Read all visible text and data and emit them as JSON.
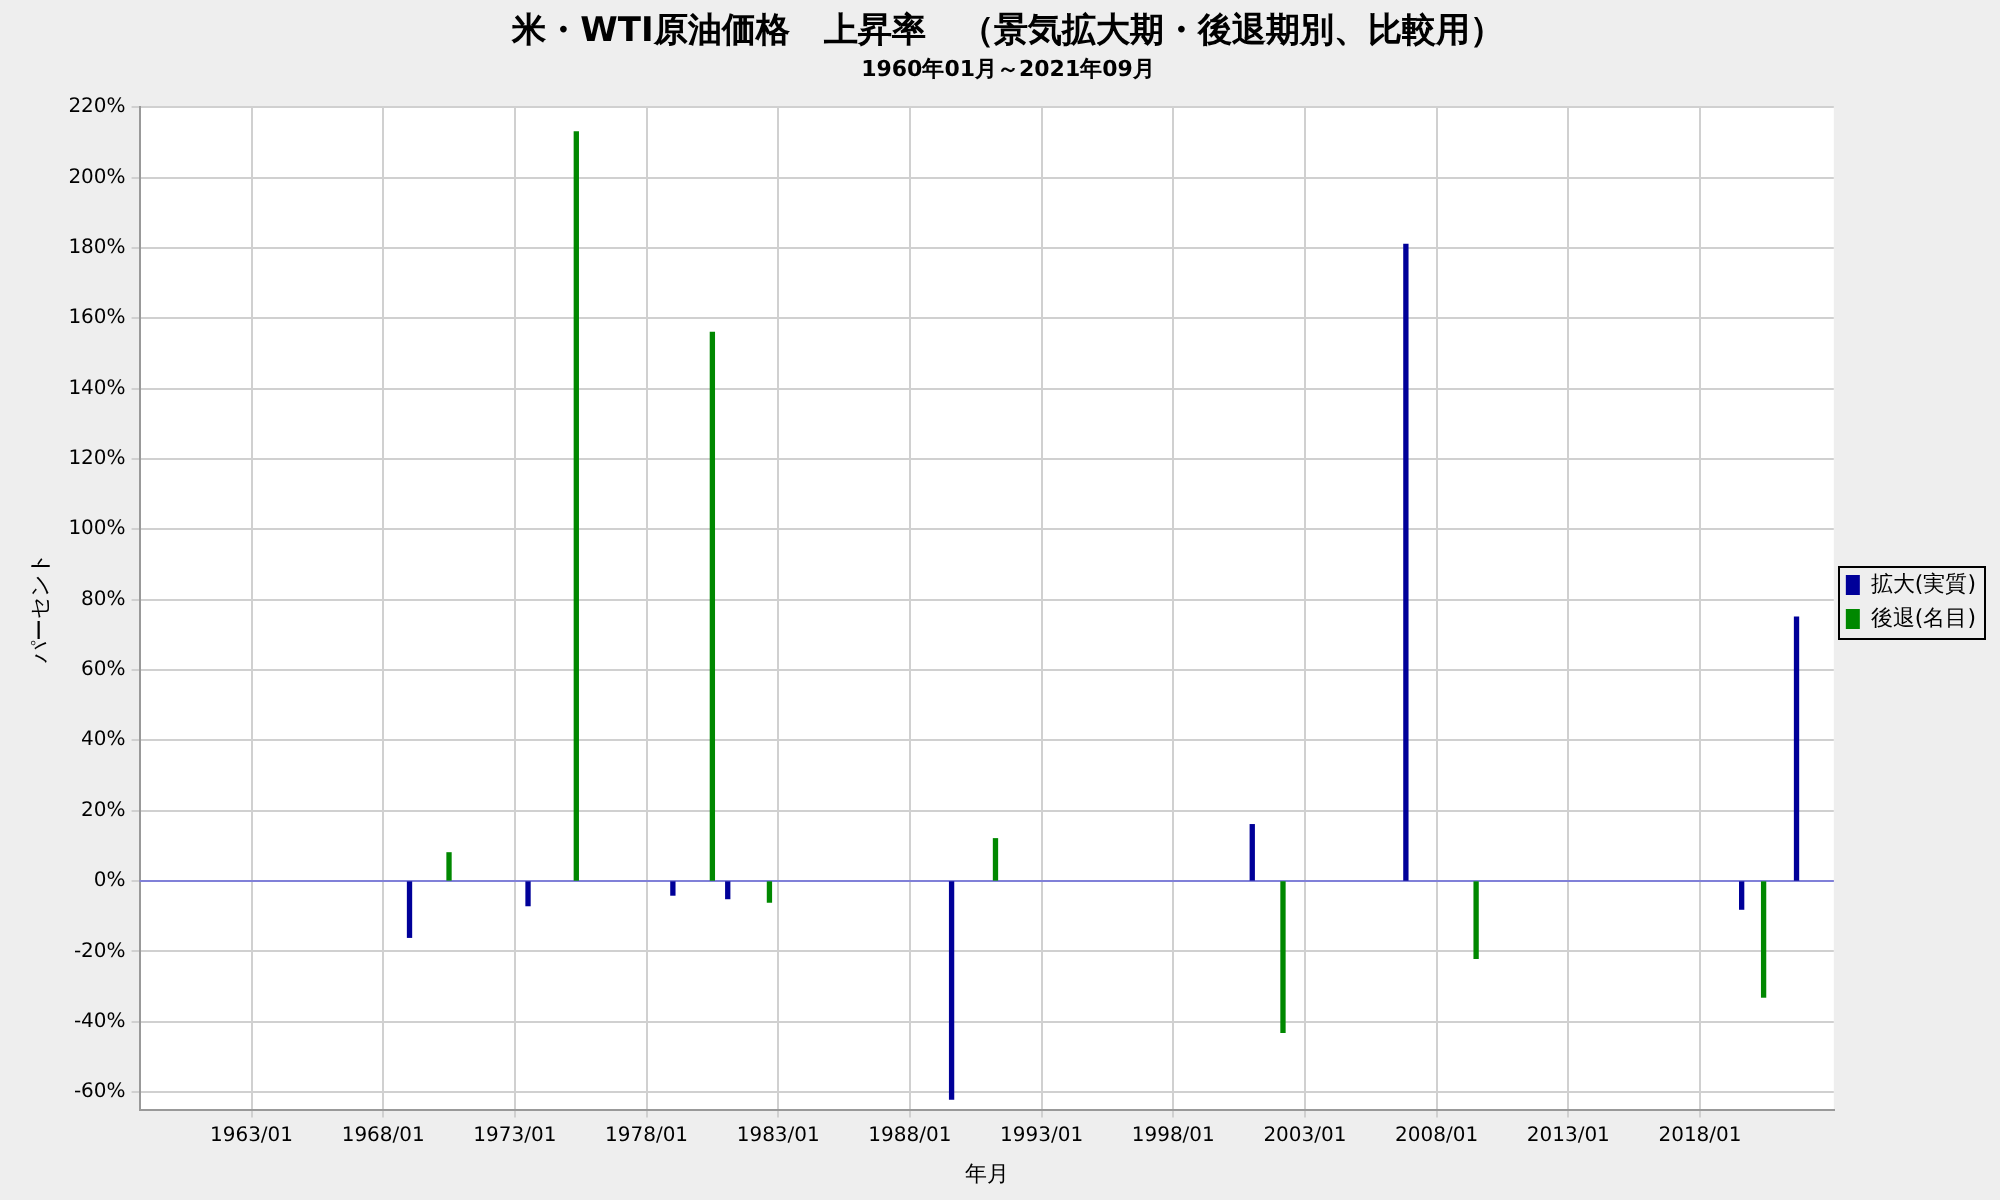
{
  "chart_data": {
    "type": "bar",
    "title": "米・WTI原油価格　上昇率　（景気拡大期・後退期別、比較用）",
    "subtitle": "1960年01月～2021年09月",
    "xlabel": "年月",
    "ylabel": "パーセント",
    "series": [
      {
        "name": "拡大(実質)",
        "color": "#000099",
        "x": [
          "1969-01",
          "1973-07",
          "1979-01",
          "1981-02",
          "1989-08",
          "2001-01",
          "2006-11",
          "2019-08",
          "2021-09"
        ],
        "values": [
          -16,
          -7,
          -4,
          -5,
          -62,
          16,
          181,
          -8,
          75
        ]
      },
      {
        "name": "後退(名目)",
        "color": "#008800",
        "x": [
          "1970-07",
          "1975-05",
          "1980-07",
          "1982-09",
          "1991-04",
          "2002-03",
          "2009-07",
          "2020-06"
        ],
        "values": [
          8,
          213,
          156,
          -6,
          12,
          -43,
          -22,
          -33
        ]
      }
    ],
    "xlim": [
      "1958-10",
      "2023-02"
    ],
    "xticks": [
      {
        "value": "1963-01",
        "label": "1963/01"
      },
      {
        "value": "1968-01",
        "label": "1968/01"
      },
      {
        "value": "1973-01",
        "label": "1973/01"
      },
      {
        "value": "1978-01",
        "label": "1978/01"
      },
      {
        "value": "1983-01",
        "label": "1983/01"
      },
      {
        "value": "1988-01",
        "label": "1988/01"
      },
      {
        "value": "1993-01",
        "label": "1993/01"
      },
      {
        "value": "1998-01",
        "label": "1998/01"
      },
      {
        "value": "2003-01",
        "label": "2003/01"
      },
      {
        "value": "2008-01",
        "label": "2008/01"
      },
      {
        "value": "2013-01",
        "label": "2013/01"
      },
      {
        "value": "2018-01",
        "label": "2018/01"
      }
    ],
    "ylim": [
      -65,
      220
    ],
    "yticks": [
      {
        "value": -60,
        "label": "-60%"
      },
      {
        "value": -40,
        "label": "-40%"
      },
      {
        "value": -20,
        "label": "-20%"
      },
      {
        "value": 0,
        "label": "0%"
      },
      {
        "value": 20,
        "label": "20%"
      },
      {
        "value": 40,
        "label": "40%"
      },
      {
        "value": 60,
        "label": "60%"
      },
      {
        "value": 80,
        "label": "80%"
      },
      {
        "value": 100,
        "label": "100%"
      },
      {
        "value": 120,
        "label": "120%"
      },
      {
        "value": 140,
        "label": "140%"
      },
      {
        "value": 160,
        "label": "160%"
      },
      {
        "value": 180,
        "label": "180%"
      },
      {
        "value": 200,
        "label": "200%"
      },
      {
        "value": 220,
        "label": "220%"
      }
    ],
    "ref_lines": [
      {
        "axis": "y",
        "value": 0,
        "color": "#8080d8"
      }
    ],
    "grid": true,
    "legend": "right"
  }
}
